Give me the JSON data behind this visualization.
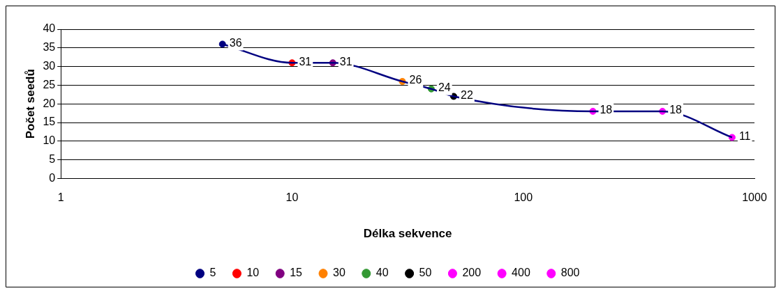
{
  "chart_data": {
    "type": "scatter",
    "xlabel": "Délka sekvence",
    "ylabel": "Počet seedů",
    "log": "x",
    "xlim": [
      1,
      1000
    ],
    "xticks": [
      1,
      10,
      100,
      1000
    ],
    "ylim": [
      0,
      40
    ],
    "yticks": [
      0,
      5,
      10,
      15,
      20,
      25,
      30,
      35,
      40
    ],
    "grid": "y",
    "legend": "bottom",
    "marker": "circle",
    "series": [
      {
        "type": "line",
        "color": "#000080",
        "marker": "none",
        "x": [
          5,
          10,
          15,
          30,
          40,
          50,
          200,
          400,
          800
        ],
        "values": [
          36,
          31,
          31,
          26,
          24,
          22,
          18,
          18,
          11
        ]
      },
      {
        "name": "5",
        "color": "#000080",
        "x": [
          5
        ],
        "values": [
          36
        ],
        "value_labels": [
          "36"
        ]
      },
      {
        "name": "10",
        "color": "#ff0000",
        "x": [
          10
        ],
        "values": [
          31
        ],
        "value_labels": [
          "31"
        ]
      },
      {
        "name": "15",
        "color": "#800080",
        "x": [
          15
        ],
        "values": [
          31
        ],
        "value_labels": [
          "31"
        ]
      },
      {
        "name": "30",
        "color": "#ff8000",
        "x": [
          30
        ],
        "values": [
          26
        ],
        "value_labels": [
          "26"
        ]
      },
      {
        "name": "40",
        "color": "#339933",
        "x": [
          40
        ],
        "values": [
          24
        ],
        "value_labels": [
          "24"
        ]
      },
      {
        "name": "50",
        "color": "#000000",
        "x": [
          50
        ],
        "values": [
          22
        ],
        "value_labels": [
          "22"
        ]
      },
      {
        "name": "200",
        "color": "#ff00ff",
        "x": [
          200
        ],
        "values": [
          18
        ],
        "value_labels": [
          "18"
        ]
      },
      {
        "name": "400",
        "color": "#ff00ff",
        "x": [
          400
        ],
        "values": [
          18
        ],
        "value_labels": [
          "18"
        ]
      },
      {
        "name": "800",
        "color": "#ff00ff",
        "x": [
          800
        ],
        "values": [
          11
        ],
        "value_labels": [
          "11"
        ]
      }
    ]
  }
}
